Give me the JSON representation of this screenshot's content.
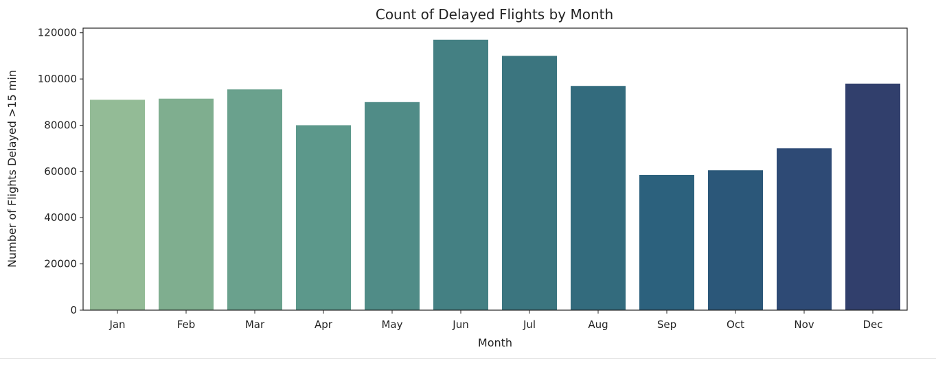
{
  "chart_data": {
    "type": "bar",
    "title": "Count of Delayed Flights by Month",
    "xlabel": "Month",
    "ylabel": "Number of Flights Delayed >15 min",
    "categories": [
      "Jan",
      "Feb",
      "Mar",
      "Apr",
      "May",
      "Jun",
      "Jul",
      "Aug",
      "Sep",
      "Oct",
      "Nov",
      "Dec"
    ],
    "values": [
      91000,
      91500,
      95500,
      80000,
      90000,
      117000,
      110000,
      97000,
      58500,
      60500,
      70000,
      98000
    ],
    "colors": [
      "#93bb96",
      "#7fae8f",
      "#6aa18d",
      "#5c988b",
      "#508c87",
      "#448083",
      "#3b757f",
      "#336b7d",
      "#2c617d",
      "#2b5779",
      "#2e4a75",
      "#313f6c"
    ],
    "ylim": [
      0,
      122000
    ],
    "yticks": [
      0,
      20000,
      40000,
      60000,
      80000,
      100000,
      120000
    ],
    "grid": false,
    "legend": "none"
  }
}
